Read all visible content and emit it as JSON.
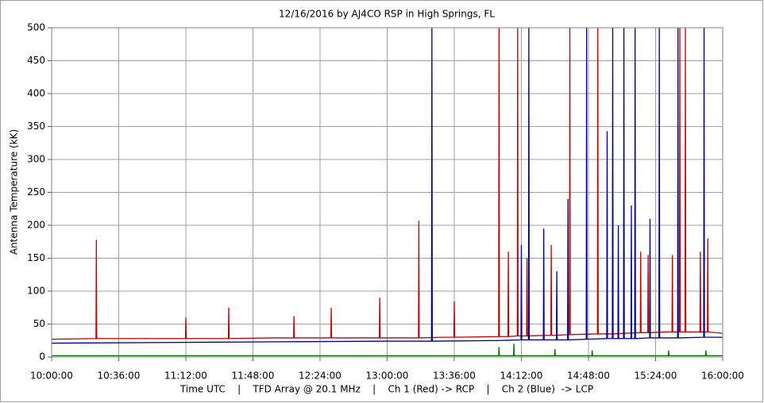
{
  "chart_data": {
    "type": "line",
    "title": "12/16/2016  by  AJ4CO RSP  in  High Springs, FL",
    "y_label": "Antenna Temperature (kK)",
    "x_label": "Time UTC    |    TFD Array @ 20.1 MHz    |    Ch 1 (Red) -> RCP    |    Ch 2 (Blue)  -> LCP",
    "xlim": [
      600,
      960
    ],
    "xticks": [
      {
        "value": 600,
        "label": "10:00:00"
      },
      {
        "value": 636,
        "label": "10:36:00"
      },
      {
        "value": 672,
        "label": "11:12:00"
      },
      {
        "value": 708,
        "label": "11:48:00"
      },
      {
        "value": 744,
        "label": "12:24:00"
      },
      {
        "value": 780,
        "label": "13:00:00"
      },
      {
        "value": 816,
        "label": "13:36:00"
      },
      {
        "value": 852,
        "label": "14:12:00"
      },
      {
        "value": 888,
        "label": "14:48:00"
      },
      {
        "value": 924,
        "label": "15:24:00"
      },
      {
        "value": 960,
        "label": "16:00:00"
      }
    ],
    "ylim": [
      0,
      500
    ],
    "yticks": [
      0,
      50,
      100,
      150,
      200,
      250,
      300,
      350,
      400,
      450,
      500
    ],
    "grid": true,
    "series": [
      {
        "color": "#c00000",
        "x": [
          600,
          623.8,
          624,
          624.2,
          630,
          660,
          671.8,
          672,
          672.2,
          690,
          694.8,
          695,
          695.2,
          720,
          729.8,
          730,
          730.2,
          749.8,
          750,
          750.2,
          775.8,
          776,
          776.2,
          780,
          796.8,
          797,
          797.2,
          810,
          815.8,
          816,
          816.2,
          839.8,
          840,
          840.2,
          844.8,
          845,
          845.2,
          849.8,
          850,
          850.2,
          854.8,
          855,
          855.2,
          867.8,
          868,
          868.2,
          870,
          877.8,
          878,
          878.2,
          892.8,
          893,
          893.2,
          900,
          915.8,
          916,
          916.2,
          919.8,
          920,
          920.2,
          930,
          932.8,
          933,
          933.2,
          936.8,
          937,
          937.2,
          939.8,
          940,
          940.2,
          947.8,
          948,
          948.2,
          951.8,
          952,
          952.2,
          960
        ],
        "values": [
          27,
          28,
          178,
          28,
          28,
          28,
          28,
          60,
          28,
          28,
          28,
          75,
          28,
          29,
          29,
          62,
          29,
          29,
          75,
          29,
          29,
          90,
          29,
          29,
          29,
          207,
          29,
          30,
          30,
          85,
          30,
          31,
          500,
          31,
          31,
          160,
          31,
          32,
          500,
          32,
          32,
          150,
          32,
          33,
          170,
          33,
          33,
          34,
          500,
          34,
          35,
          500,
          35,
          35,
          37,
          160,
          37,
          37,
          155,
          37,
          38,
          38,
          155,
          38,
          38,
          500,
          38,
          38,
          500,
          38,
          38,
          160,
          38,
          38,
          180,
          38,
          36
        ]
      },
      {
        "color": "#00008b",
        "x": [
          600,
          660,
          720,
          780,
          803.8,
          804,
          804.2,
          840,
          851.8,
          852,
          852.2,
          855.8,
          856,
          856.2,
          863.8,
          864,
          864.2,
          870.8,
          871,
          871.2,
          876.8,
          877,
          877.2,
          886.8,
          887,
          887.2,
          897.8,
          898,
          898.2,
          900.8,
          901,
          901.2,
          903.8,
          904,
          904.2,
          906.8,
          907,
          907.2,
          910.8,
          911,
          911.2,
          912.8,
          913,
          913.2,
          920.8,
          921,
          921.2,
          925.8,
          926,
          926.2,
          935.8,
          936,
          936.2,
          949.8,
          950,
          950.2,
          960
        ],
        "values": [
          21,
          22,
          23,
          24,
          24,
          500,
          24,
          25,
          26,
          170,
          26,
          26,
          500,
          26,
          26,
          195,
          26,
          26,
          130,
          26,
          26,
          240,
          26,
          27,
          500,
          27,
          28,
          343,
          28,
          28,
          500,
          28,
          28,
          200,
          28,
          28,
          500,
          28,
          28,
          230,
          28,
          28,
          500,
          28,
          29,
          210,
          29,
          29,
          500,
          29,
          29,
          500,
          29,
          30,
          500,
          30,
          30
        ]
      },
      {
        "color": "#007000",
        "x": [
          600,
          839.8,
          840,
          840.2,
          847.8,
          848,
          848.2,
          869.8,
          870,
          870.2,
          889.8,
          890,
          890.2,
          930.8,
          931,
          931.2,
          950.8,
          951,
          951.2,
          960
        ],
        "values": [
          2,
          2,
          15,
          2,
          2,
          20,
          2,
          2,
          12,
          2,
          2,
          10,
          2,
          2,
          10,
          2,
          2,
          10,
          2,
          2
        ]
      }
    ]
  }
}
